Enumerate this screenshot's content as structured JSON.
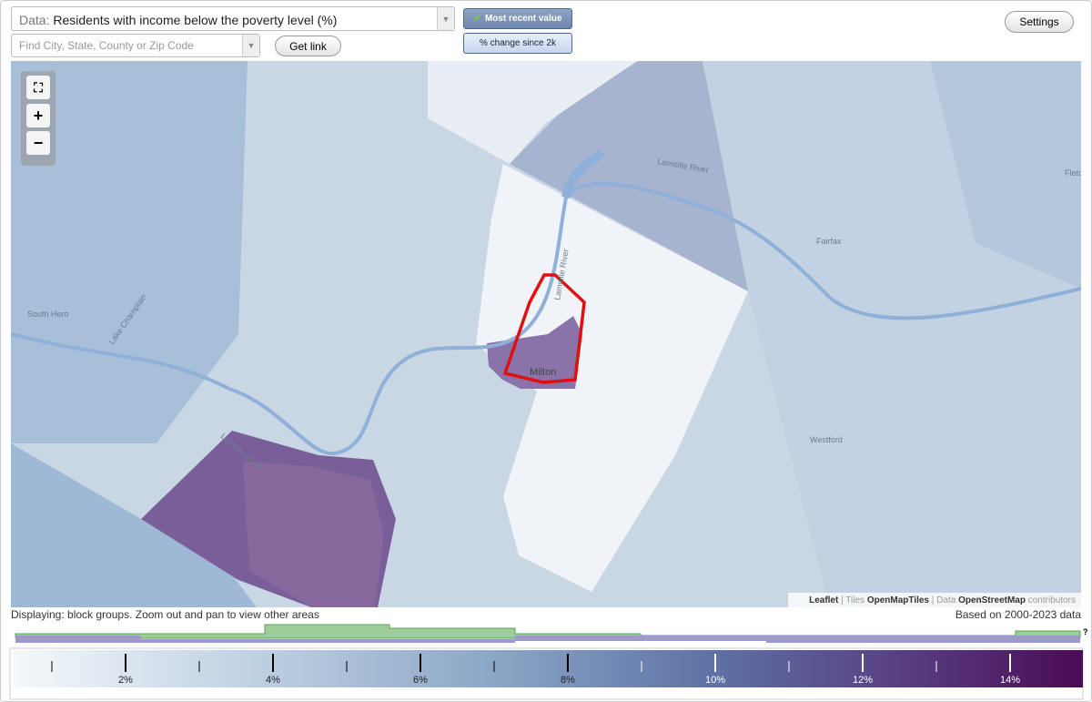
{
  "controls": {
    "data_label": "Data:",
    "data_value": "Residents with income below the poverty level (%)",
    "search_placeholder": "Find City, State, County or Zip Code",
    "get_link": "Get link",
    "most_recent": "Most recent value",
    "pct_change": "% change since 2k",
    "settings": "Settings"
  },
  "map": {
    "zoom_in": "+",
    "zoom_out": "−",
    "places": [
      "South Hero",
      "Lake Champlain",
      "Milton",
      "Fairfax",
      "Westford",
      "Lamoille River",
      "Lamoille River",
      "Lamoille River",
      "Fletc"
    ],
    "attribution": [
      "Leaflet",
      " | Tiles ",
      "OpenMapTiles",
      " | Data ",
      "OpenStreetMap",
      " contributors"
    ]
  },
  "status": {
    "displaying": "Displaying: block groups. Zoom out and pan to view other areas",
    "based_on": "Based on 2000-2023 data"
  },
  "legend": {
    "help": "?",
    "labels": [
      "2%",
      "4%",
      "6%",
      "8%",
      "10%",
      "12%",
      "14%"
    ]
  }
}
